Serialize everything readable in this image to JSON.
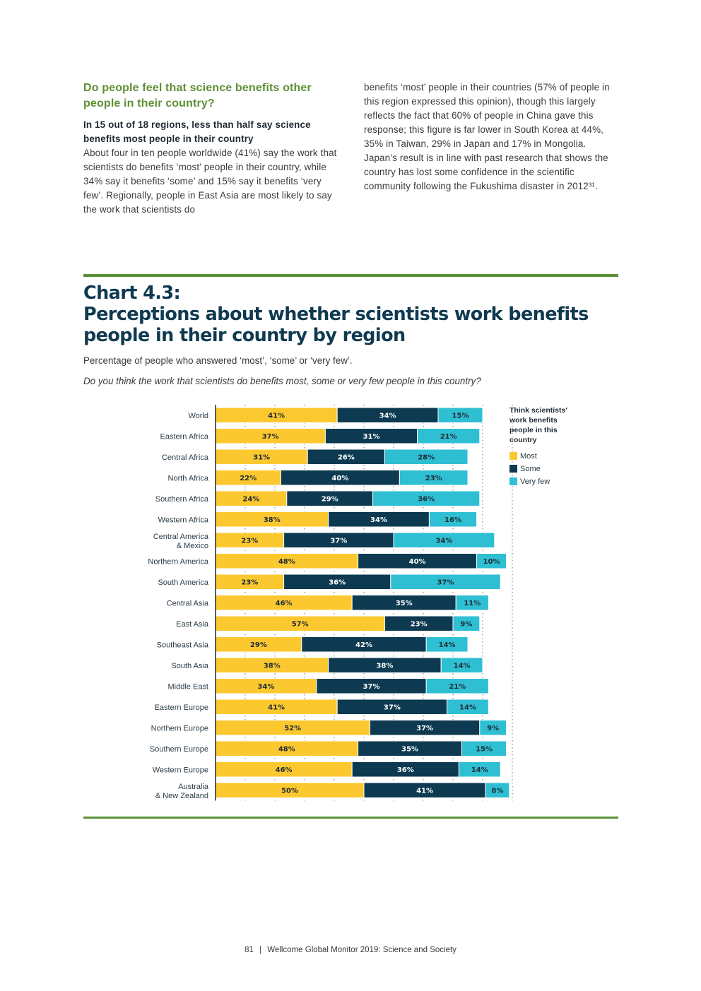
{
  "text_left": {
    "heading": "Do people feel that science benefits other people in their country?",
    "subheading": "In 15 out of 18 regions, less than half say science benefits most people in their country",
    "body": "About four in ten people worldwide (41%) say the work that scientists do benefits ‘most’ people in their country, while 34% say it benefits ‘some’ and 15% say it benefits ‘very few’. Regionally, people in East Asia are most likely to say the work that scientists do"
  },
  "text_right": {
    "body": "benefits ‘most’ people in their countries (57% of people in this region expressed this opinion), though this largely reflects the fact that 60% of people in China gave this response; this figure is far lower in South Korea at 44%, 35% in Taiwan, 29% in Japan and 17% in Mongolia. Japan’s result is in line with past research that shows the country has lost some confidence in the scientific community following the Fukushima disaster in 2012³¹."
  },
  "chart_header": {
    "title_line1": "Chart 4.3:",
    "title_line2": "Perceptions about whether scientists work benefits people in their country by region",
    "subtitle": "Percentage of people who answered ‘most’, ‘some’ or ‘very few’.",
    "question": "Do you think the work that scientists do benefits most, some or very few people in this country?"
  },
  "chart_data": {
    "type": "bar",
    "orientation": "horizontal",
    "stacked": true,
    "xlim": [
      0,
      100
    ],
    "legend_title": "Think scientists' work benefits people in this country",
    "legend_position": "right",
    "categories": [
      "World",
      "Eastern Africa",
      "Central Africa",
      "North Africa",
      "Southern Africa",
      "Western Africa",
      "Central America & Mexico",
      "Northern America",
      "South America",
      "Central Asia",
      "East Asia",
      "Southeast Asia",
      "South Asia",
      "Middle East",
      "Eastern Europe",
      "Northern Europe",
      "Southern Europe",
      "Western Europe",
      "Australia & New Zealand"
    ],
    "series": [
      {
        "name": "Most",
        "color": "#fcc82f",
        "values": [
          41,
          37,
          31,
          22,
          24,
          38,
          23,
          48,
          23,
          46,
          57,
          29,
          38,
          34,
          41,
          52,
          48,
          46,
          50
        ]
      },
      {
        "name": "Some",
        "color": "#0d3a51",
        "values": [
          34,
          31,
          26,
          40,
          29,
          34,
          37,
          40,
          36,
          35,
          23,
          42,
          38,
          37,
          37,
          37,
          35,
          36,
          41
        ]
      },
      {
        "name": "Very few",
        "color": "#2fbfd3",
        "values": [
          15,
          21,
          28,
          23,
          36,
          16,
          34,
          10,
          37,
          11,
          9,
          14,
          14,
          21,
          14,
          9,
          15,
          14,
          8
        ]
      }
    ],
    "value_suffix": "%"
  },
  "footer": {
    "page_number": "81",
    "separator": "|",
    "publication": "Wellcome Global Monitor 2019: Science and Society"
  }
}
